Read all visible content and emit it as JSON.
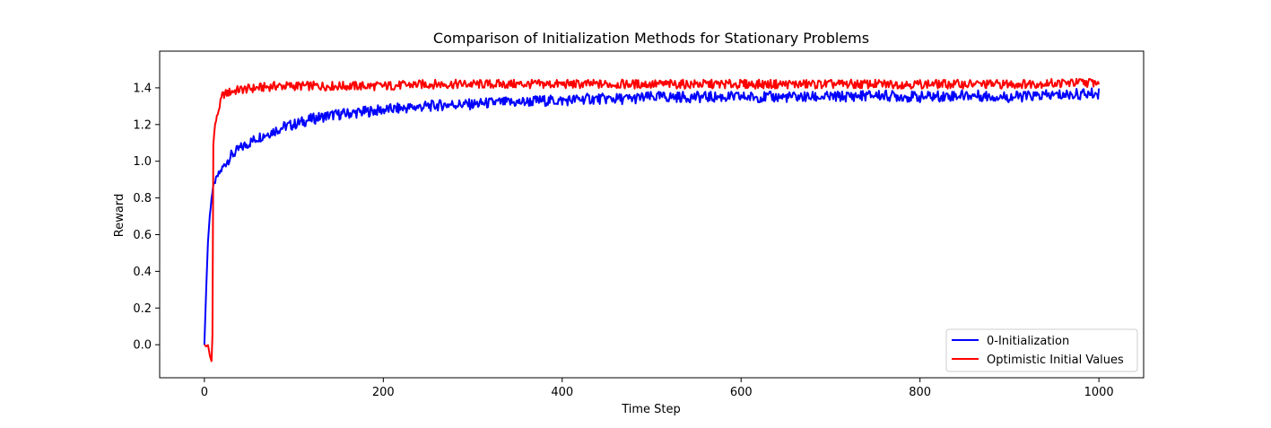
{
  "chart_data": {
    "type": "line",
    "title": "Comparison of Initialization Methods for Stationary Problems",
    "xlabel": "Time Step",
    "ylabel": "Reward",
    "xlim": [
      -50,
      1050
    ],
    "ylim": [
      -0.18,
      1.6
    ],
    "xticks": [
      0,
      200,
      400,
      600,
      800,
      1000
    ],
    "xtick_labels": [
      "0",
      "200",
      "400",
      "600",
      "800",
      "1000"
    ],
    "yticks": [
      0.0,
      0.2,
      0.4,
      0.6,
      0.8,
      1.0,
      1.2,
      1.4
    ],
    "ytick_labels": [
      "0.0",
      "0.2",
      "0.4",
      "0.6",
      "0.8",
      "1.0",
      "1.2",
      "1.4"
    ],
    "grid": false,
    "legend_position": "lower-right",
    "series": [
      {
        "name": "0-Initialization",
        "color": "#0000ff",
        "x": [
          0,
          2,
          4,
          6,
          8,
          10,
          12,
          15,
          20,
          25,
          30,
          40,
          50,
          60,
          70,
          80,
          90,
          100,
          120,
          140,
          160,
          180,
          200,
          225,
          250,
          275,
          300,
          325,
          350,
          375,
          400,
          425,
          450,
          475,
          500,
          550,
          600,
          650,
          700,
          750,
          800,
          850,
          900,
          950,
          1000
        ],
        "values": [
          0.0,
          0.3,
          0.56,
          0.7,
          0.8,
          0.86,
          0.89,
          0.92,
          0.96,
          1.0,
          1.03,
          1.07,
          1.1,
          1.13,
          1.15,
          1.17,
          1.19,
          1.2,
          1.23,
          1.25,
          1.26,
          1.27,
          1.28,
          1.29,
          1.3,
          1.31,
          1.31,
          1.32,
          1.32,
          1.33,
          1.33,
          1.34,
          1.34,
          1.34,
          1.35,
          1.35,
          1.35,
          1.35,
          1.35,
          1.36,
          1.35,
          1.36,
          1.35,
          1.36,
          1.37
        ]
      },
      {
        "name": "Optimistic Initial Values",
        "color": "#ff0000",
        "x": [
          0,
          2,
          4,
          6,
          8,
          9,
          10,
          11,
          12,
          14,
          16,
          18,
          20,
          25,
          30,
          40,
          60,
          80,
          100,
          150,
          200,
          250,
          300,
          400,
          500,
          600,
          700,
          800,
          900,
          1000
        ],
        "values": [
          0.0,
          -0.01,
          0.0,
          -0.06,
          -0.09,
          0.05,
          1.1,
          1.15,
          1.2,
          1.24,
          1.28,
          1.32,
          1.36,
          1.37,
          1.38,
          1.39,
          1.4,
          1.41,
          1.41,
          1.41,
          1.41,
          1.42,
          1.42,
          1.42,
          1.42,
          1.42,
          1.42,
          1.42,
          1.42,
          1.43
        ]
      }
    ]
  }
}
